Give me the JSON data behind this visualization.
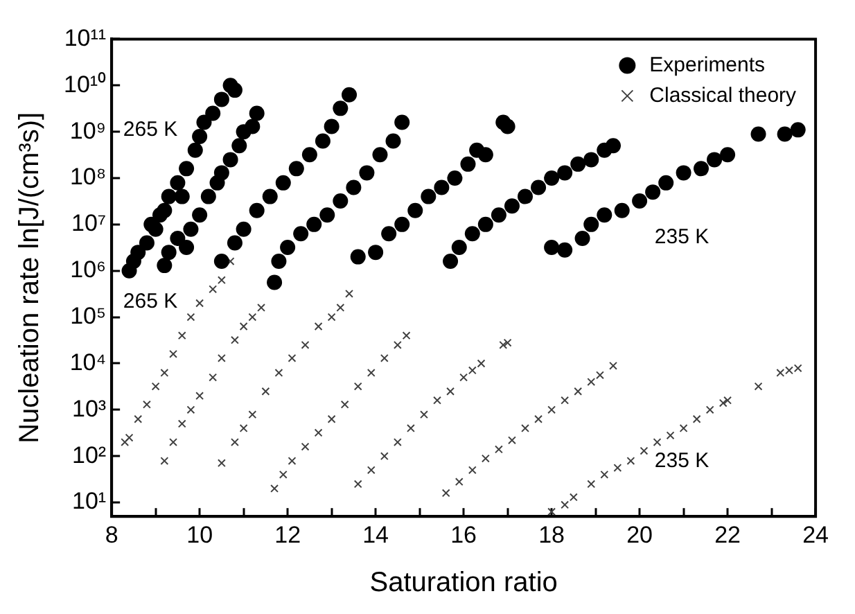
{
  "chart_data": {
    "type": "scatter",
    "xlabel": "Saturation ratio",
    "ylabel": "Nucleation rate ln[J/(cm³s)]",
    "xlim": [
      8,
      24
    ],
    "xticks": [
      8,
      {
        "value": 9,
        "label": null
      },
      10,
      {
        "value": 11,
        "label": null
      },
      12,
      {
        "value": 13,
        "label": null
      },
      14,
      {
        "value": 15,
        "label": null
      },
      16,
      {
        "value": 17,
        "label": null
      },
      18,
      {
        "value": 19,
        "label": null
      },
      20,
      {
        "value": 21,
        "label": null
      },
      22,
      {
        "value": 23,
        "label": null
      },
      24
    ],
    "ylim": [
      5,
      100000000000
    ],
    "yticks": [
      {
        "value": 10,
        "label": "10¹"
      },
      {
        "value": 100,
        "label": "10²"
      },
      {
        "value": 1000,
        "label": "10³"
      },
      {
        "value": 10000,
        "label": "10⁴"
      },
      {
        "value": 100000,
        "label": "10⁵"
      },
      {
        "value": 1000000,
        "label": "10⁶"
      },
      {
        "value": 10000000,
        "label": "10⁷"
      },
      {
        "value": 100000000,
        "label": "10⁸"
      },
      {
        "value": 1000000000,
        "label": "10⁹"
      },
      {
        "value": 10000000000,
        "label": "10¹⁰"
      },
      {
        "value": 100000000000,
        "label": "10¹¹"
      }
    ],
    "log": "y",
    "grid": false,
    "legend": "top right",
    "annotations": [
      "265 K",
      "265 K",
      "235 K",
      "235 K"
    ],
    "series": [
      {
        "name": "Experiments",
        "color": "#000000",
        "marker": "circle",
        "x": [
          8.4,
          8.5,
          8.6,
          8.8,
          8.9,
          9.0,
          9.1,
          9.2,
          9.3,
          9.5,
          9.6,
          9.7,
          9.9,
          10.0,
          10.1,
          10.3,
          10.5,
          10.7,
          10.8,
          9.2,
          9.3,
          9.5,
          9.7,
          9.8,
          10.0,
          10.2,
          10.4,
          10.5,
          10.7,
          10.9,
          11.0,
          11.2,
          11.3,
          10.5,
          10.8,
          11.0,
          11.3,
          11.6,
          11.7,
          11.9,
          12.2,
          12.5,
          12.8,
          13.0,
          13.2,
          13.4,
          11.8,
          12.0,
          12.3,
          12.6,
          12.9,
          13.2,
          13.5,
          13.8,
          14.1,
          14.4,
          14.6,
          13.6,
          14.0,
          14.3,
          14.6,
          14.9,
          15.2,
          15.5,
          15.8,
          16.1,
          16.3,
          16.5,
          16.9,
          17.0,
          15.7,
          15.9,
          16.2,
          16.5,
          16.8,
          17.1,
          17.4,
          17.7,
          18.0,
          18.3,
          18.6,
          18.9,
          19.2,
          19.4,
          18.0,
          18.3,
          18.7,
          18.9,
          19.2,
          19.6,
          20.0,
          20.3,
          20.6,
          21.0,
          21.4,
          21.7,
          22.0,
          22.7,
          23.3,
          23.6
        ],
        "values": [
          1000000,
          1600000,
          2500000,
          4000000,
          10000000,
          7900000,
          16000000,
          20000000,
          40000000,
          79000000,
          40000000,
          160000000,
          400000000,
          790000000,
          1600000000,
          2500000000,
          5000000000,
          10000000000,
          7900000000,
          1300000,
          2500000,
          5000000,
          3200000,
          7900000,
          16000000,
          40000000,
          79000000,
          130000000,
          250000000,
          500000000,
          1000000000,
          1300000000,
          2500000000,
          1600000,
          4000000,
          7900000,
          20000000,
          40000000,
          560000,
          79000000,
          160000000,
          320000000,
          630000000,
          1300000000,
          3200000000,
          6300000000,
          1600000,
          3200000,
          6300000,
          10000000,
          16000000,
          32000000,
          63000000,
          130000000,
          320000000,
          630000000,
          1600000000,
          2000000,
          2500000,
          6300000,
          10000000,
          20000000,
          40000000,
          63000000,
          100000000,
          200000000,
          400000000,
          320000000,
          1600000000,
          1300000000,
          1600000,
          3200000,
          6300000,
          10000000,
          16000000,
          25000000,
          40000000,
          63000000,
          100000000,
          130000000,
          200000000,
          250000000,
          400000000,
          500000000,
          3200000,
          2800000,
          5000000,
          10000000,
          16000000,
          20000000,
          32000000,
          50000000,
          79000000,
          130000000,
          160000000,
          250000000,
          320000000,
          890000000,
          890000000,
          1100000000
        ]
      },
      {
        "name": "Classical theory",
        "color": "#404040",
        "marker": "cross",
        "x": [
          8.3,
          8.4,
          8.6,
          8.8,
          9.0,
          9.2,
          9.4,
          9.6,
          9.8,
          10.0,
          10.3,
          10.5,
          10.7,
          9.2,
          9.4,
          9.6,
          9.8,
          10.0,
          10.3,
          10.5,
          10.5,
          10.8,
          11.0,
          11.2,
          11.4,
          10.8,
          11.0,
          11.2,
          11.5,
          11.8,
          12.1,
          12.4,
          12.7,
          13.0,
          13.2,
          13.4,
          11.7,
          11.9,
          12.1,
          12.4,
          12.7,
          13.0,
          13.3,
          13.6,
          13.9,
          14.2,
          14.5,
          14.7,
          13.6,
          13.9,
          14.2,
          14.5,
          14.8,
          15.1,
          15.4,
          15.7,
          16.0,
          16.2,
          16.4,
          16.9,
          17.0,
          15.6,
          15.9,
          16.2,
          16.5,
          16.8,
          17.1,
          17.4,
          17.7,
          18.0,
          18.3,
          18.6,
          18.9,
          19.1,
          19.4,
          18.0,
          18.3,
          18.5,
          18.9,
          19.2,
          19.5,
          19.8,
          20.1,
          20.4,
          20.7,
          21.0,
          21.3,
          21.6,
          21.9,
          22.0,
          22.7,
          23.2,
          23.4,
          23.6
        ],
        "values": [
          200,
          250,
          630,
          1300,
          3200,
          6300,
          16000,
          40000,
          100000,
          200000,
          400000,
          630000,
          1600000,
          79,
          200,
          500,
          1000,
          2000,
          5000,
          13000,
          71,
          32000,
          63000,
          100000,
          160000,
          200,
          400,
          790,
          2500,
          6300,
          13000,
          25000,
          63000,
          100000,
          160000,
          320000,
          20,
          40,
          79,
          160,
          320,
          630,
          1300,
          3200,
          6300,
          13000,
          25000,
          40000,
          25,
          50,
          100,
          200,
          400,
          790,
          1600,
          2500,
          5000,
          7100,
          10000,
          25000,
          28000,
          16,
          28,
          50,
          89,
          140,
          220,
          400,
          630,
          1000,
          1600,
          2500,
          4000,
          5600,
          8900,
          6.3,
          8.9,
          13,
          25,
          40,
          56,
          79,
          130,
          200,
          280,
          400,
          630,
          1000,
          1400,
          1600,
          3200,
          6300,
          7100,
          7900
        ]
      }
    ]
  }
}
